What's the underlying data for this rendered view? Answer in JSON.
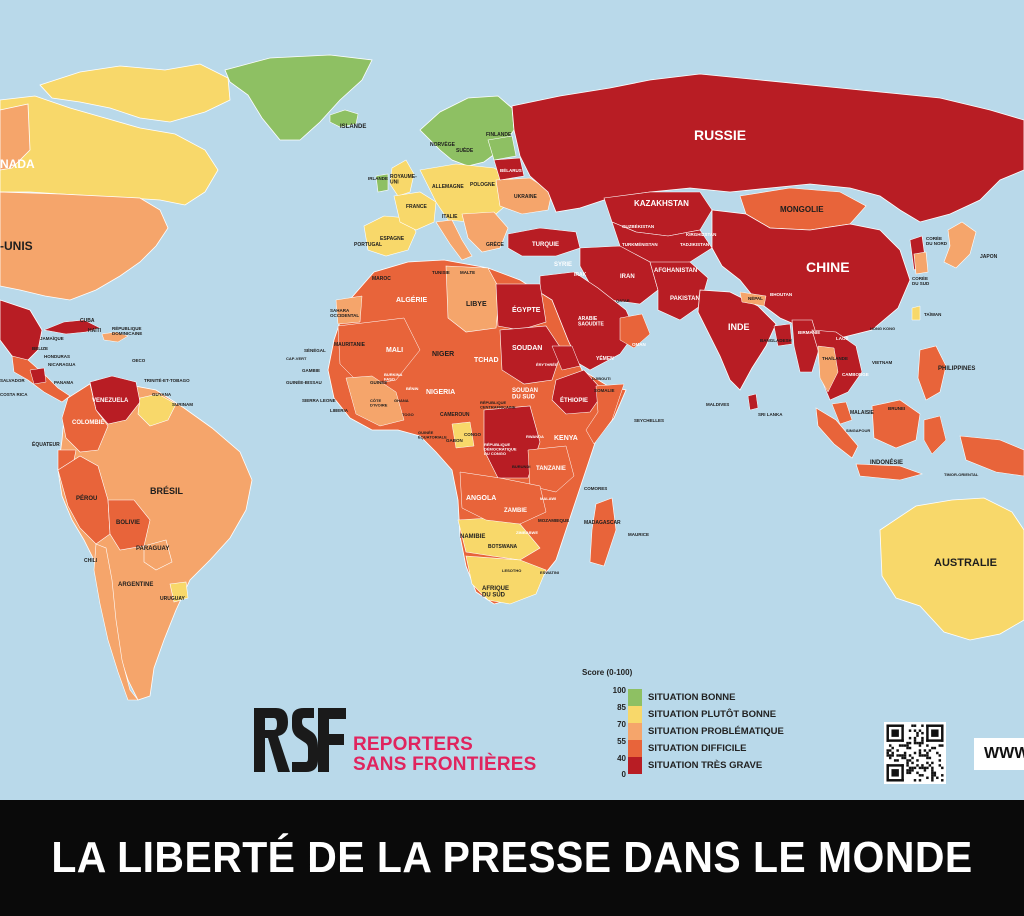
{
  "title": "LA LIBERTÉ DE LA PRESSE DANS LE MONDE EN 2025",
  "organization": {
    "line1": "REPORTERS",
    "line2": "SANS FRONTIÈRES"
  },
  "website_fragment": "WWW",
  "legend": {
    "heading": "Score (0-100)",
    "ticks": [
      "100",
      "85",
      "70",
      "55",
      "40",
      "0"
    ],
    "categories": [
      {
        "label": "SITUATION BONNE",
        "color": "#8ec063"
      },
      {
        "label": "SITUATION PLUTÔT BONNE",
        "color": "#f8d86a"
      },
      {
        "label": "SITUATION PROBLÉMATIQUE",
        "color": "#f5a56b"
      },
      {
        "label": "SITUATION DIFFICILE",
        "color": "#e8643a"
      },
      {
        "label": "SITUATION TRÈS GRAVE",
        "color": "#b81d24"
      }
    ]
  },
  "colors": {
    "ocean": "#b9d9ea",
    "banner": "#0a0a0a",
    "logo_text": "#e0245e",
    "border": "#ffffff"
  },
  "countries": {
    "canada": "NADA",
    "usa": "-UNIS",
    "groenland": "",
    "islande": "ISLANDE",
    "norvege": "NORVÈGE",
    "suede": "SUÈDE",
    "finlande": "FINLANDE",
    "royaume_uni": "ROYAUME-\nUNI",
    "irlande": "IRLANDE",
    "france": "FRANCE",
    "espagne": "ESPAGNE",
    "portugal": "PORTUGAL",
    "allemagne": "ALLEMAGNE",
    "pologne": "POLOGNE",
    "italie": "ITALIE",
    "ukraine": "UKRAINE",
    "belarus": "BÉLARUS",
    "grece": "GRÈCE",
    "russie": "RUSSIE",
    "kazakhstan": "KAZAKHSTAN",
    "mongolie": "MONGOLIE",
    "chine": "CHINE",
    "ouzbekistan": "OUZBÉKISTAN",
    "kirghizstan": "KIRGHIZSTAN",
    "turkmenistan": "TURKMÉNISTAN",
    "tadjikistan": "TADJIKISTAN",
    "afghanistan": "AFGHANISTAN",
    "pakistan": "PAKISTAN",
    "inde": "INDE",
    "nepal": "NÉPAL",
    "bhoutan": "BHOUTAN",
    "bangladesh": "BANGLADESH",
    "birmanie": "BIRMANIE",
    "laos": "LAOS",
    "thailande": "THAÏLANDE",
    "cambodge": "CAMBODGE",
    "vietnam": "VIETNAM",
    "coree_nord": "CORÉE\nDU NORD",
    "coree_sud": "CORÉE\nDU SUD",
    "japon": "JAPON",
    "taiwan": "TAÏWAN",
    "hong_kong": "HONG KONG",
    "philippines": "PHILIPPINES",
    "malaisie": "MALAISIE",
    "singapour": "SINGAPOUR",
    "brunei": "BRUNEI",
    "indonesie": "INDONÉSIE",
    "timor": "TIMOR-ORIENTAL",
    "australie": "AUSTRALIE",
    "turquie": "TURQUIE",
    "syrie": "SYRIE",
    "irak": "IRAK",
    "iran": "IRAN",
    "arabie": "ARABIE\nSAOUDITE",
    "yemen": "YÉMEN",
    "oman": "OMAN",
    "qatar": "QATAR",
    "egypte": "ÉGYPTE",
    "libye": "LIBYE",
    "tunisie": "TUNISIE",
    "malte": "MALTE",
    "maroc": "MAROC",
    "algerie": "ALGÉRIE",
    "sahara": "SAHARA\nOCCIDENTAL",
    "mauritanie": "MAURITANIE",
    "mali": "MALI",
    "niger": "NIGER",
    "tchad": "TCHAD",
    "soudan": "SOUDAN",
    "erythree": "ÉRYTHRÉE",
    "djibouti": "DJIBOUTI",
    "ethiopie": "ÉTHIOPIE",
    "somalie": "SOMALIE",
    "soudan_sud": "SOUDAN\nDU SUD",
    "senegal": "SÉNÉGAL",
    "gambie": "GAMBIE",
    "cap_vert": "CAP-VERT",
    "guinee_bissau": "GUINÉE-BISSAU",
    "guinee": "GUINÉE",
    "sierra_leone": "SIERRA LEONE",
    "liberia": "LIBERIA",
    "cote_ivoire": "CÔTE\nD'IVOIRE",
    "ghana": "GHANA",
    "togo": "TOGO",
    "benin": "BÉNIN",
    "burkina": "BURKINA\nFASO",
    "nigeria": "NIGERIA",
    "cameroun": "CAMEROUN",
    "rca": "RÉPUBLIQUE\nCENTRAFRICAINE",
    "guinee_eq": "GUINÉE\nÉQUATORIALE",
    "gabon": "GABON",
    "congo": "CONGO",
    "rdc": "RÉPUBLIQUE\nDÉMOCRATIQUE\nDU CONGO",
    "rwanda": "RWANDA",
    "burundi": "BURUNDI",
    "kenya": "KENYA",
    "tanzanie": "TANZANIE",
    "angola": "ANGOLA",
    "zambie": "ZAMBIE",
    "malawi": "MALAWI",
    "mozambique": "MOZAMBIQUE",
    "zimbabwe": "ZIMBABWE",
    "namibie": "NAMIBIE",
    "botswana": "BOTSWANA",
    "afrique_sud": "AFRIQUE\nDU SUD",
    "lesotho": "LESOTHO",
    "eswatini": "ESWATINI",
    "madagascar": "MADAGASCAR",
    "comores": "COMORES",
    "maurice": "MAURICE",
    "seychelles": "SEYCHELLES",
    "maldives": "MALDIVES",
    "sri_lanka": "SRI LANKA",
    "cuba": "CUBA",
    "haiti": "HAÏTI",
    "rep_dom": "RÉPUBLIQUE\nDOMINICAINE",
    "jamaique": "JAMAÏQUE",
    "belize": "BELIZE",
    "honduras": "HONDURAS",
    "nicaragua": "NICARAGUA",
    "salvador": "SALVADOR",
    "costa_rica": "COSTA RICA",
    "panama": "PANAMA",
    "oeco": "OECO",
    "trinite": "TRINITÉ-ET-TOBAGO",
    "guyana": "GUYANA",
    "surinam": "SURINAM",
    "venezuela": "VENEZUELA",
    "colombie": "COLOMBIE",
    "equateur": "ÉQUATEUR",
    "perou": "PÉROU",
    "bresil": "BRÉSIL",
    "bolivie": "BOLIVIE",
    "paraguay": "PARAGUAY",
    "chili": "CHILI",
    "argentine": "ARGENTINE",
    "uruguay": "URUGUAY"
  }
}
